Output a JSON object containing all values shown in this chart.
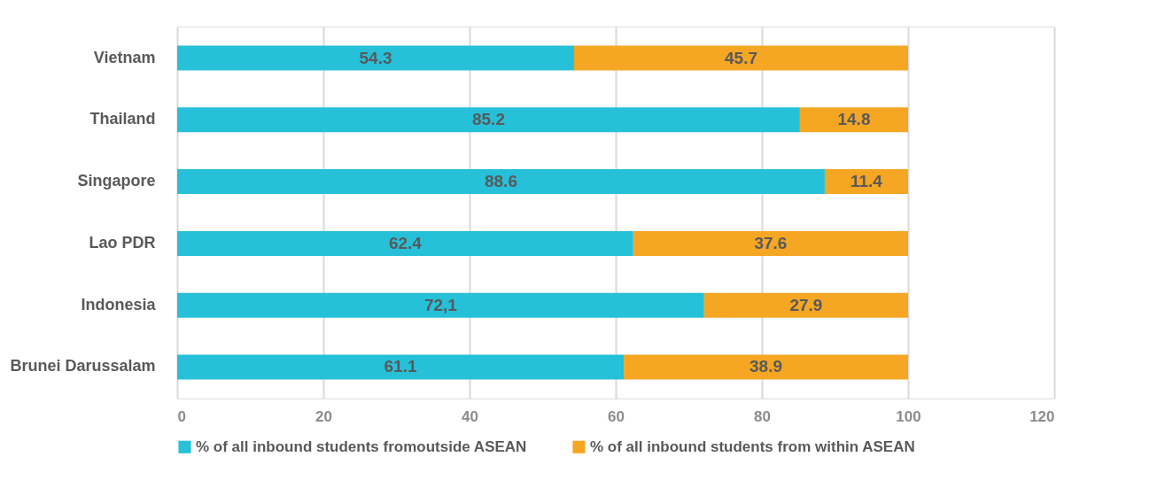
{
  "chart_data": {
    "type": "bar",
    "orientation": "horizontal",
    "stacked": true,
    "categories": [
      "Vietnam",
      "Thailand",
      "Singapore",
      "Lao PDR",
      "Indonesia",
      "Brunei Darussalam"
    ],
    "series": [
      {
        "name": "% of all inbound students fromoutside ASEAN",
        "color": "#26c0d9",
        "values": [
          54.3,
          85.2,
          88.6,
          62.4,
          72.1,
          61.1
        ],
        "value_labels": [
          "54.3",
          "85.2",
          "88.6",
          "62.4",
          "72,1",
          "61.1"
        ]
      },
      {
        "name": "% of all inbound students from within ASEAN",
        "color": "#f5a623",
        "values": [
          45.7,
          14.8,
          11.4,
          37.6,
          27.9,
          38.9
        ],
        "value_labels": [
          "45.7",
          "14.8",
          "11.4",
          "37.6",
          "27.9",
          "38.9"
        ]
      }
    ],
    "xlim": [
      0,
      120
    ],
    "xticks": [
      0,
      20,
      40,
      60,
      80,
      100,
      120
    ],
    "grid": "x",
    "legend": "bottom"
  }
}
